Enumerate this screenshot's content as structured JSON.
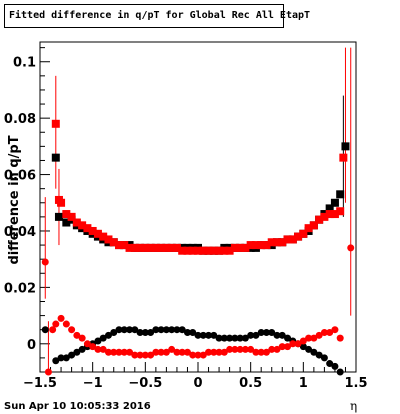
{
  "title": "Fitted difference in q/pT for Global Rec All EtapT",
  "footer": "Sun Apr 10 10:05:33 2016",
  "chart_data": {
    "type": "scatter",
    "title": "Fitted difference in q/pT for Global Rec All EtapT",
    "xlabel": "η",
    "ylabel": "difference in q/pT",
    "xlim": [
      -1.5,
      1.5
    ],
    "ylim": [
      -0.01,
      0.107
    ],
    "xticks": [
      -1.5,
      -1,
      -0.5,
      0,
      0.5,
      1,
      1.5
    ],
    "xtick_labels": [
      "−1.5",
      "−1",
      "−0.5",
      "0",
      "0.5",
      "1",
      "1.5"
    ],
    "yticks": [
      0,
      0.02,
      0.04,
      0.06,
      0.08,
      0.1
    ],
    "ytick_labels": [
      "0",
      "0.02",
      "0.04",
      "0.06",
      "0.08",
      "0.1"
    ],
    "grid": false,
    "series": [
      {
        "color": "#000000",
        "marker": "square",
        "points": [
          [
            -1.35,
            0.066
          ],
          [
            -1.32,
            0.045
          ],
          [
            -1.25,
            0.043
          ],
          [
            -1.2,
            0.044
          ],
          [
            -1.15,
            0.042
          ],
          [
            -1.1,
            0.041
          ],
          [
            -1.05,
            0.04
          ],
          [
            -1.0,
            0.039
          ],
          [
            -0.95,
            0.038
          ],
          [
            -0.9,
            0.037
          ],
          [
            -0.85,
            0.036
          ],
          [
            -0.8,
            0.036
          ],
          [
            -0.75,
            0.035
          ],
          [
            -0.7,
            0.035
          ],
          [
            -0.65,
            0.035
          ],
          [
            -0.6,
            0.034
          ],
          [
            -0.55,
            0.034
          ],
          [
            -0.5,
            0.034
          ],
          [
            -0.45,
            0.034
          ],
          [
            -0.4,
            0.034
          ],
          [
            -0.35,
            0.034
          ],
          [
            -0.3,
            0.034
          ],
          [
            -0.25,
            0.034
          ],
          [
            -0.2,
            0.034
          ],
          [
            -0.15,
            0.034
          ],
          [
            -0.1,
            0.034
          ],
          [
            -0.05,
            0.034
          ],
          [
            0.0,
            0.034
          ],
          [
            0.05,
            0.033
          ],
          [
            0.1,
            0.033
          ],
          [
            0.15,
            0.033
          ],
          [
            0.2,
            0.033
          ],
          [
            0.25,
            0.034
          ],
          [
            0.3,
            0.034
          ],
          [
            0.35,
            0.034
          ],
          [
            0.4,
            0.034
          ],
          [
            0.45,
            0.034
          ],
          [
            0.5,
            0.034
          ],
          [
            0.55,
            0.034
          ],
          [
            0.6,
            0.035
          ],
          [
            0.65,
            0.035
          ],
          [
            0.7,
            0.035
          ],
          [
            0.75,
            0.036
          ],
          [
            0.8,
            0.036
          ],
          [
            0.85,
            0.037
          ],
          [
            0.9,
            0.037
          ],
          [
            0.95,
            0.038
          ],
          [
            1.0,
            0.039
          ],
          [
            1.05,
            0.04
          ],
          [
            1.1,
            0.042
          ],
          [
            1.15,
            0.044
          ],
          [
            1.2,
            0.046
          ],
          [
            1.25,
            0.048
          ],
          [
            1.3,
            0.05
          ],
          [
            1.35,
            0.053
          ],
          [
            1.4,
            0.07
          ]
        ]
      },
      {
        "color": "#ff0000",
        "marker": "square",
        "points": [
          [
            -1.35,
            0.078
          ],
          [
            -1.32,
            0.051
          ],
          [
            -1.3,
            0.05
          ],
          [
            -1.25,
            0.046
          ],
          [
            -1.2,
            0.045
          ],
          [
            -1.15,
            0.043
          ],
          [
            -1.1,
            0.042
          ],
          [
            -1.05,
            0.041
          ],
          [
            -1.0,
            0.04
          ],
          [
            -0.95,
            0.039
          ],
          [
            -0.9,
            0.038
          ],
          [
            -0.85,
            0.037
          ],
          [
            -0.8,
            0.036
          ],
          [
            -0.75,
            0.035
          ],
          [
            -0.7,
            0.035
          ],
          [
            -0.65,
            0.034
          ],
          [
            -0.6,
            0.034
          ],
          [
            -0.55,
            0.034
          ],
          [
            -0.5,
            0.034
          ],
          [
            -0.45,
            0.034
          ],
          [
            -0.4,
            0.034
          ],
          [
            -0.35,
            0.034
          ],
          [
            -0.3,
            0.034
          ],
          [
            -0.25,
            0.034
          ],
          [
            -0.2,
            0.034
          ],
          [
            -0.15,
            0.033
          ],
          [
            -0.1,
            0.033
          ],
          [
            -0.05,
            0.033
          ],
          [
            0.0,
            0.033
          ],
          [
            0.05,
            0.033
          ],
          [
            0.1,
            0.033
          ],
          [
            0.15,
            0.033
          ],
          [
            0.2,
            0.033
          ],
          [
            0.25,
            0.033
          ],
          [
            0.3,
            0.033
          ],
          [
            0.35,
            0.034
          ],
          [
            0.4,
            0.034
          ],
          [
            0.45,
            0.034
          ],
          [
            0.5,
            0.035
          ],
          [
            0.55,
            0.035
          ],
          [
            0.6,
            0.035
          ],
          [
            0.65,
            0.035
          ],
          [
            0.7,
            0.036
          ],
          [
            0.75,
            0.036
          ],
          [
            0.8,
            0.036
          ],
          [
            0.85,
            0.037
          ],
          [
            0.9,
            0.037
          ],
          [
            0.95,
            0.038
          ],
          [
            1.0,
            0.039
          ],
          [
            1.05,
            0.041
          ],
          [
            1.1,
            0.042
          ],
          [
            1.15,
            0.044
          ],
          [
            1.2,
            0.045
          ],
          [
            1.25,
            0.046
          ],
          [
            1.3,
            0.046
          ],
          [
            1.35,
            0.047
          ],
          [
            1.38,
            0.066
          ]
        ]
      },
      {
        "color": "#000000",
        "marker": "circle",
        "points": [
          [
            -1.45,
            0.005
          ],
          [
            -1.35,
            -0.006
          ],
          [
            -1.3,
            -0.005
          ],
          [
            -1.25,
            -0.005
          ],
          [
            -1.2,
            -0.004
          ],
          [
            -1.15,
            -0.003
          ],
          [
            -1.1,
            -0.002
          ],
          [
            -1.05,
            -0.001
          ],
          [
            -1.0,
            0.0
          ],
          [
            -0.95,
            0.001
          ],
          [
            -0.9,
            0.002
          ],
          [
            -0.85,
            0.003
          ],
          [
            -0.8,
            0.004
          ],
          [
            -0.75,
            0.005
          ],
          [
            -0.7,
            0.005
          ],
          [
            -0.65,
            0.005
          ],
          [
            -0.6,
            0.005
          ],
          [
            -0.55,
            0.004
          ],
          [
            -0.5,
            0.004
          ],
          [
            -0.45,
            0.004
          ],
          [
            -0.4,
            0.005
          ],
          [
            -0.35,
            0.005
          ],
          [
            -0.3,
            0.005
          ],
          [
            -0.25,
            0.005
          ],
          [
            -0.2,
            0.005
          ],
          [
            -0.15,
            0.005
          ],
          [
            -0.1,
            0.004
          ],
          [
            -0.05,
            0.004
          ],
          [
            0.0,
            0.003
          ],
          [
            0.05,
            0.003
          ],
          [
            0.1,
            0.003
          ],
          [
            0.15,
            0.003
          ],
          [
            0.2,
            0.002
          ],
          [
            0.25,
            0.002
          ],
          [
            0.3,
            0.002
          ],
          [
            0.35,
            0.002
          ],
          [
            0.4,
            0.002
          ],
          [
            0.45,
            0.002
          ],
          [
            0.5,
            0.003
          ],
          [
            0.55,
            0.003
          ],
          [
            0.6,
            0.004
          ],
          [
            0.65,
            0.004
          ],
          [
            0.7,
            0.004
          ],
          [
            0.75,
            0.003
          ],
          [
            0.8,
            0.003
          ],
          [
            0.85,
            0.002
          ],
          [
            0.9,
            0.001
          ],
          [
            0.95,
            0.0
          ],
          [
            1.0,
            -0.001
          ],
          [
            1.05,
            -0.002
          ],
          [
            1.1,
            -0.003
          ],
          [
            1.15,
            -0.004
          ],
          [
            1.2,
            -0.005
          ],
          [
            1.25,
            -0.007
          ],
          [
            1.3,
            -0.008
          ],
          [
            1.35,
            -0.01
          ]
        ]
      },
      {
        "color": "#ff0000",
        "marker": "circle",
        "points": [
          [
            -1.45,
            0.029
          ],
          [
            -1.42,
            -0.01
          ],
          [
            -1.38,
            0.005
          ],
          [
            -1.35,
            0.007
          ],
          [
            -1.3,
            0.009
          ],
          [
            -1.25,
            0.007
          ],
          [
            -1.2,
            0.005
          ],
          [
            -1.15,
            0.003
          ],
          [
            -1.1,
            0.002
          ],
          [
            -1.05,
            0.0
          ],
          [
            -1.0,
            -0.001
          ],
          [
            -0.95,
            -0.002
          ],
          [
            -0.9,
            -0.002
          ],
          [
            -0.85,
            -0.003
          ],
          [
            -0.8,
            -0.003
          ],
          [
            -0.75,
            -0.003
          ],
          [
            -0.7,
            -0.003
          ],
          [
            -0.65,
            -0.003
          ],
          [
            -0.6,
            -0.004
          ],
          [
            -0.55,
            -0.004
          ],
          [
            -0.5,
            -0.004
          ],
          [
            -0.45,
            -0.004
          ],
          [
            -0.4,
            -0.003
          ],
          [
            -0.35,
            -0.003
          ],
          [
            -0.3,
            -0.003
          ],
          [
            -0.25,
            -0.002
          ],
          [
            -0.2,
            -0.003
          ],
          [
            -0.15,
            -0.003
          ],
          [
            -0.1,
            -0.003
          ],
          [
            -0.05,
            -0.004
          ],
          [
            0.0,
            -0.004
          ],
          [
            0.05,
            -0.004
          ],
          [
            0.1,
            -0.003
          ],
          [
            0.15,
            -0.003
          ],
          [
            0.2,
            -0.003
          ],
          [
            0.25,
            -0.003
          ],
          [
            0.3,
            -0.002
          ],
          [
            0.35,
            -0.002
          ],
          [
            0.4,
            -0.002
          ],
          [
            0.45,
            -0.002
          ],
          [
            0.5,
            -0.002
          ],
          [
            0.55,
            -0.003
          ],
          [
            0.6,
            -0.003
          ],
          [
            0.65,
            -0.003
          ],
          [
            0.7,
            -0.002
          ],
          [
            0.75,
            -0.002
          ],
          [
            0.8,
            -0.001
          ],
          [
            0.85,
            -0.001
          ],
          [
            0.9,
            0.0
          ],
          [
            0.95,
            0.0
          ],
          [
            1.0,
            0.001
          ],
          [
            1.05,
            0.002
          ],
          [
            1.1,
            0.002
          ],
          [
            1.15,
            0.003
          ],
          [
            1.2,
            0.004
          ],
          [
            1.25,
            0.004
          ],
          [
            1.3,
            0.005
          ],
          [
            1.35,
            0.002
          ],
          [
            1.45,
            0.034
          ]
        ]
      }
    ]
  }
}
